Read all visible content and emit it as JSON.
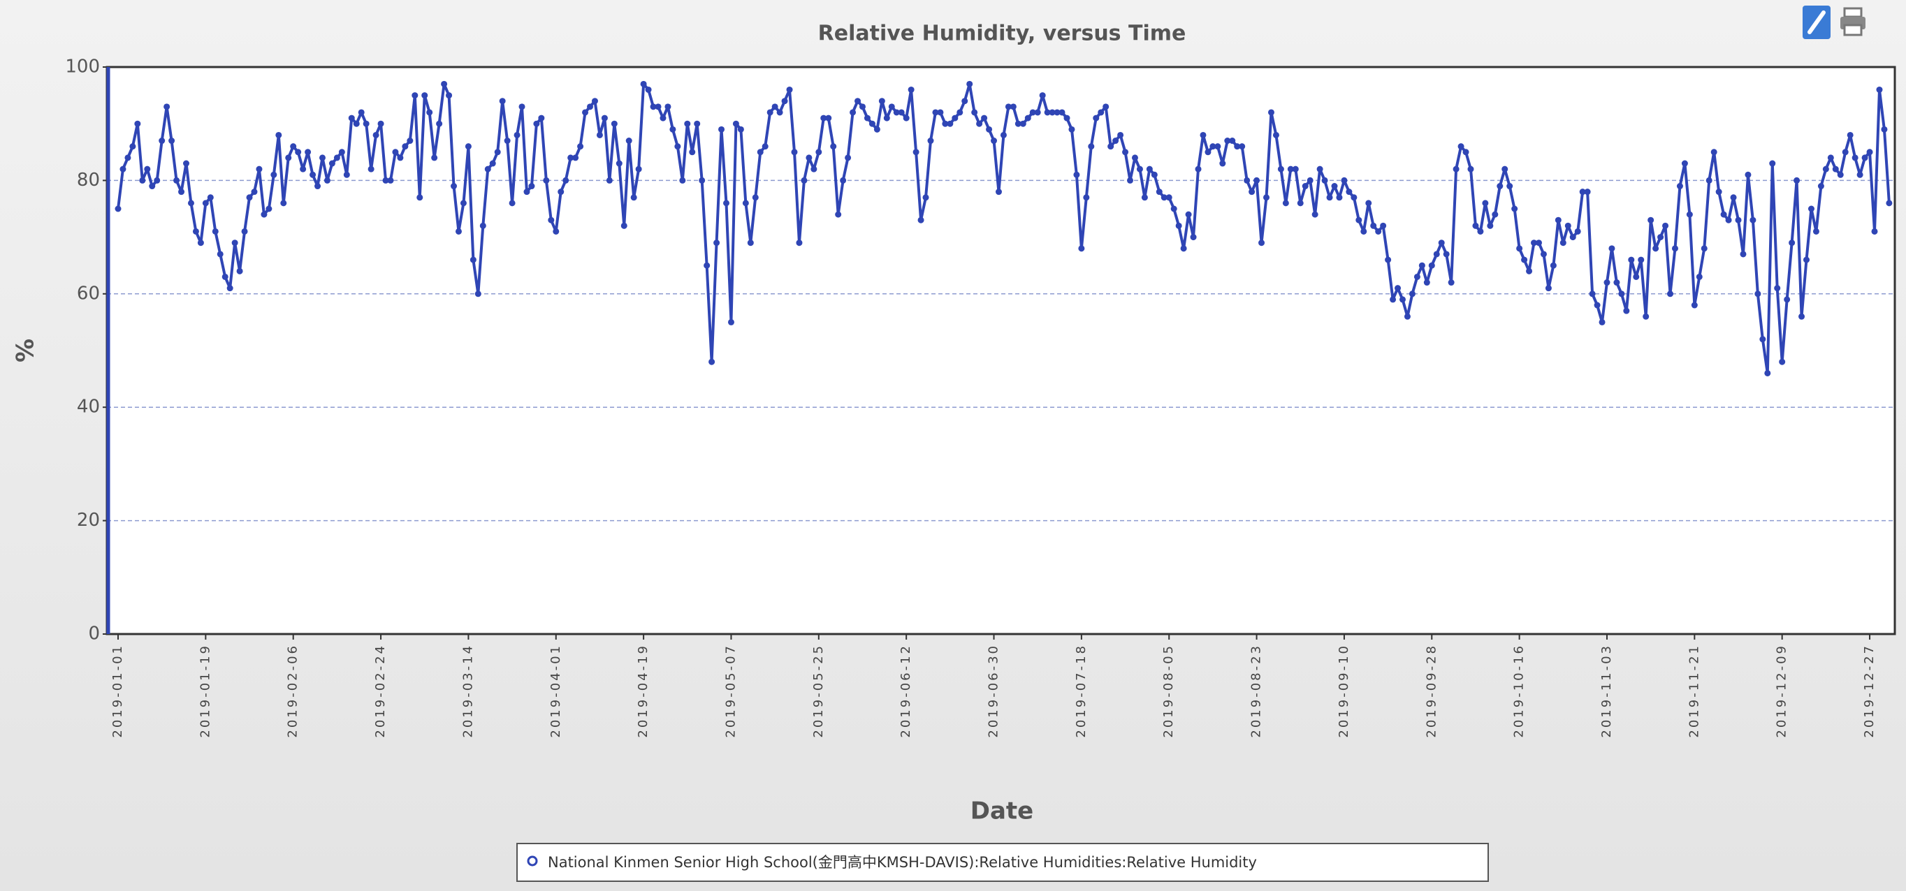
{
  "chart_data": {
    "type": "line",
    "title": "Relative Humidity, versus Time",
    "x_label": "Date",
    "y_label": "%",
    "categories": [
      "2019-01-01",
      null,
      null,
      null,
      null,
      null,
      null,
      null,
      null,
      null,
      null,
      null,
      null,
      null,
      null,
      null,
      null,
      null,
      "2019-01-19",
      null,
      null,
      null,
      null,
      null,
      null,
      null,
      null,
      null,
      null,
      null,
      null,
      null,
      null,
      null,
      null,
      null,
      "2019-02-06",
      null,
      null,
      null,
      null,
      null,
      null,
      null,
      null,
      null,
      null,
      null,
      null,
      null,
      null,
      null,
      null,
      null,
      "2019-02-24",
      null,
      null,
      null,
      null,
      null,
      null,
      null,
      null,
      null,
      null,
      null,
      null,
      null,
      null,
      null,
      null,
      null,
      "2019-03-14",
      null,
      null,
      null,
      null,
      null,
      null,
      null,
      null,
      null,
      null,
      null,
      null,
      null,
      null,
      null,
      null,
      null,
      "2019-04-01",
      null,
      null,
      null,
      null,
      null,
      null,
      null,
      null,
      null,
      null,
      null,
      null,
      null,
      null,
      null,
      null,
      null,
      "2019-04-19",
      null,
      null,
      null,
      null,
      null,
      null,
      null,
      null,
      null,
      null,
      null,
      null,
      null,
      null,
      null,
      null,
      null,
      "2019-05-07",
      null,
      null,
      null,
      null,
      null,
      null,
      null,
      null,
      null,
      null,
      null,
      null,
      null,
      null,
      null,
      null,
      null,
      "2019-05-25",
      null,
      null,
      null,
      null,
      null,
      null,
      null,
      null,
      null,
      null,
      null,
      null,
      null,
      null,
      null,
      null,
      null,
      "2019-06-12",
      null,
      null,
      null,
      null,
      null,
      null,
      null,
      null,
      null,
      null,
      null,
      null,
      null,
      null,
      null,
      null,
      null,
      "2019-06-30",
      null,
      null,
      null,
      null,
      null,
      null,
      null,
      null,
      null,
      null,
      null,
      null,
      null,
      null,
      null,
      null,
      null,
      "2019-07-18",
      null,
      null,
      null,
      null,
      null,
      null,
      null,
      null,
      null,
      null,
      null,
      null,
      null,
      null,
      null,
      null,
      null,
      "2019-08-05",
      null,
      null,
      null,
      null,
      null,
      null,
      null,
      null,
      null,
      null,
      null,
      null,
      null,
      null,
      null,
      null,
      null,
      "2019-08-23",
      null,
      null,
      null,
      null,
      null,
      null,
      null,
      null,
      null,
      null,
      null,
      null,
      null,
      null,
      null,
      null,
      null,
      "2019-09-10",
      null,
      null,
      null,
      null,
      null,
      null,
      null,
      null,
      null,
      null,
      null,
      null,
      null,
      null,
      null,
      null,
      null,
      "2019-09-28",
      null,
      null,
      null,
      null,
      null,
      null,
      null,
      null,
      null,
      null,
      null,
      null,
      null,
      null,
      null,
      null,
      null,
      "2019-10-16",
      null,
      null,
      null,
      null,
      null,
      null,
      null,
      null,
      null,
      null,
      null,
      null,
      null,
      null,
      null,
      null,
      null,
      "2019-11-03",
      null,
      null,
      null,
      null,
      null,
      null,
      null,
      null,
      null,
      null,
      null,
      null,
      null,
      null,
      null,
      null,
      null,
      "2019-11-21",
      null,
      null,
      null,
      null,
      null,
      null,
      null,
      null,
      null,
      null,
      null,
      null,
      null,
      null,
      null,
      null,
      null,
      "2019-12-09",
      null,
      null,
      null,
      null,
      null,
      null,
      null,
      null,
      null,
      null,
      null,
      null,
      null,
      null,
      null,
      null,
      null,
      "2019-12-27",
      null,
      null,
      null,
      null
    ],
    "series": [
      {
        "name": "National Kinmen Senior High School(金門高中KMSH-DAVIS):Relative Humidities:Relative Humidity",
        "color": "#2f45b5",
        "values": [
          75,
          82,
          84,
          86,
          90,
          80,
          82,
          79,
          80,
          87,
          93,
          87,
          80,
          78,
          83,
          76,
          71,
          69,
          76,
          77,
          71,
          67,
          63,
          61,
          69,
          64,
          71,
          77,
          78,
          82,
          74,
          75,
          81,
          88,
          76,
          84,
          86,
          85,
          82,
          85,
          81,
          79,
          84,
          80,
          83,
          84,
          85,
          81,
          91,
          90,
          92,
          90,
          82,
          88,
          90,
          80,
          80,
          85,
          84,
          86,
          87,
          95,
          77,
          95,
          92,
          84,
          90,
          97,
          95,
          79,
          71,
          76,
          86,
          66,
          60,
          72,
          82,
          83,
          85,
          94,
          87,
          76,
          88,
          93,
          78,
          79,
          90,
          91,
          80,
          73,
          71,
          78,
          80,
          84,
          84,
          86,
          92,
          93,
          94,
          88,
          91,
          80,
          90,
          83,
          72,
          87,
          77,
          82,
          97,
          96,
          93,
          93,
          91,
          93,
          89,
          86,
          80,
          90,
          85,
          90,
          80,
          65,
          48,
          69,
          89,
          76,
          55,
          90,
          89,
          76,
          69,
          77,
          85,
          86,
          92,
          93,
          92,
          94,
          96,
          85,
          69,
          80,
          84,
          82,
          85,
          91,
          91,
          86,
          74,
          80,
          84,
          92,
          94,
          93,
          91,
          90,
          89,
          94,
          91,
          93,
          92,
          92,
          91,
          96,
          85,
          73,
          77,
          87,
          92,
          92,
          90,
          90,
          91,
          92,
          94,
          97,
          92,
          90,
          91,
          89,
          87,
          78,
          88,
          93,
          93,
          90,
          90,
          91,
          92,
          92,
          95,
          92,
          92,
          92,
          92,
          91,
          89,
          81,
          68,
          77,
          86,
          91,
          92,
          93,
          86,
          87,
          88,
          85,
          80,
          84,
          82,
          77,
          82,
          81,
          78,
          77,
          77,
          75,
          72,
          68,
          74,
          70,
          82,
          88,
          85,
          86,
          86,
          83,
          87,
          87,
          86,
          86,
          80,
          78,
          80,
          69,
          77,
          92,
          88,
          82,
          76,
          82,
          82,
          76,
          79,
          80,
          74,
          82,
          80,
          77,
          79,
          77,
          80,
          78,
          77,
          73,
          71,
          76,
          72,
          71,
          72,
          66,
          59,
          61,
          59,
          56,
          60,
          63,
          65,
          62,
          65,
          67,
          69,
          67,
          62,
          82,
          86,
          85,
          82,
          72,
          71,
          76,
          72,
          74,
          79,
          82,
          79,
          75,
          68,
          66,
          64,
          69,
          69,
          67,
          61,
          65,
          73,
          69,
          72,
          70,
          71,
          78,
          78,
          60,
          58,
          55,
          62,
          68,
          62,
          60,
          57,
          66,
          63,
          66,
          56,
          73,
          68,
          70,
          72,
          60,
          68,
          79,
          83,
          74,
          58,
          63,
          68,
          80,
          85,
          78,
          74,
          73,
          77,
          73,
          67,
          81,
          73,
          60,
          52,
          46,
          83,
          61,
          48,
          59,
          69,
          80,
          56,
          66,
          75,
          71,
          79,
          82,
          84,
          82,
          81,
          85,
          88,
          84,
          81,
          84,
          85,
          71,
          96,
          89,
          76
        ]
      }
    ],
    "ylim": [
      0,
      100
    ],
    "yticks": [
      0,
      20,
      40,
      60,
      80,
      100
    ],
    "grid": true
  }
}
